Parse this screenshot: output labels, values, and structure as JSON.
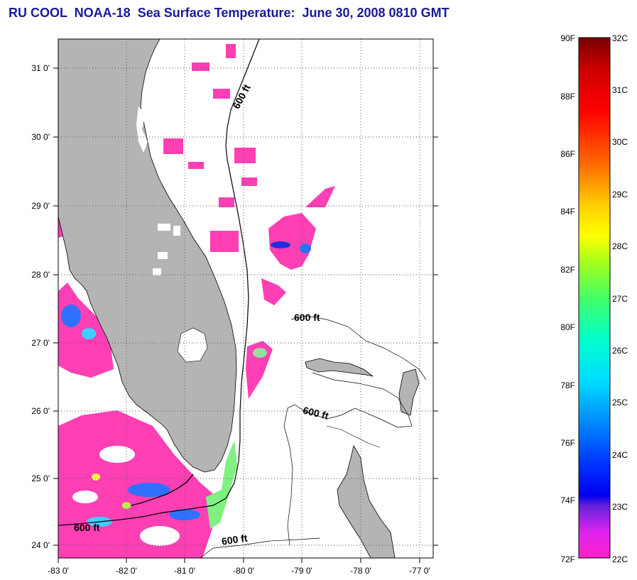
{
  "title": "RU COOL  NOAA-18  Sea Surface Temperature:  June 30, 2008 0810 GMT",
  "map": {
    "lon_range": [
      -83,
      -76.8
    ],
    "lat_range": [
      23.85,
      31.45
    ],
    "lon_ticks": [
      "-83 0'",
      "-82 0'",
      "-81 0'",
      "-80 0'",
      "-79 0'",
      "-78 0'",
      "-77 0'"
    ],
    "lat_ticks": [
      "31 0'",
      "30 0'",
      "29 0'",
      "28 0'",
      "27 0'",
      "26 0'",
      "25 0'",
      "24 0'"
    ],
    "grid": true,
    "land_color": "#b4b4b4",
    "contour_labels": [
      "600 ft",
      "600 ft",
      "600 ft",
      "600 ft",
      "600 ft"
    ]
  },
  "colorbar": {
    "fahrenheit_labels": [
      "90F",
      "88F",
      "86F",
      "84F",
      "82F",
      "80F",
      "78F",
      "76F",
      "74F",
      "72F"
    ],
    "celsius_labels": [
      "32C",
      "31C",
      "30C",
      "29C",
      "28C",
      "27C",
      "26C",
      "25C",
      "24C",
      "23C",
      "22C"
    ],
    "range_f": [
      72,
      90
    ],
    "range_c": [
      22,
      32
    ]
  }
}
